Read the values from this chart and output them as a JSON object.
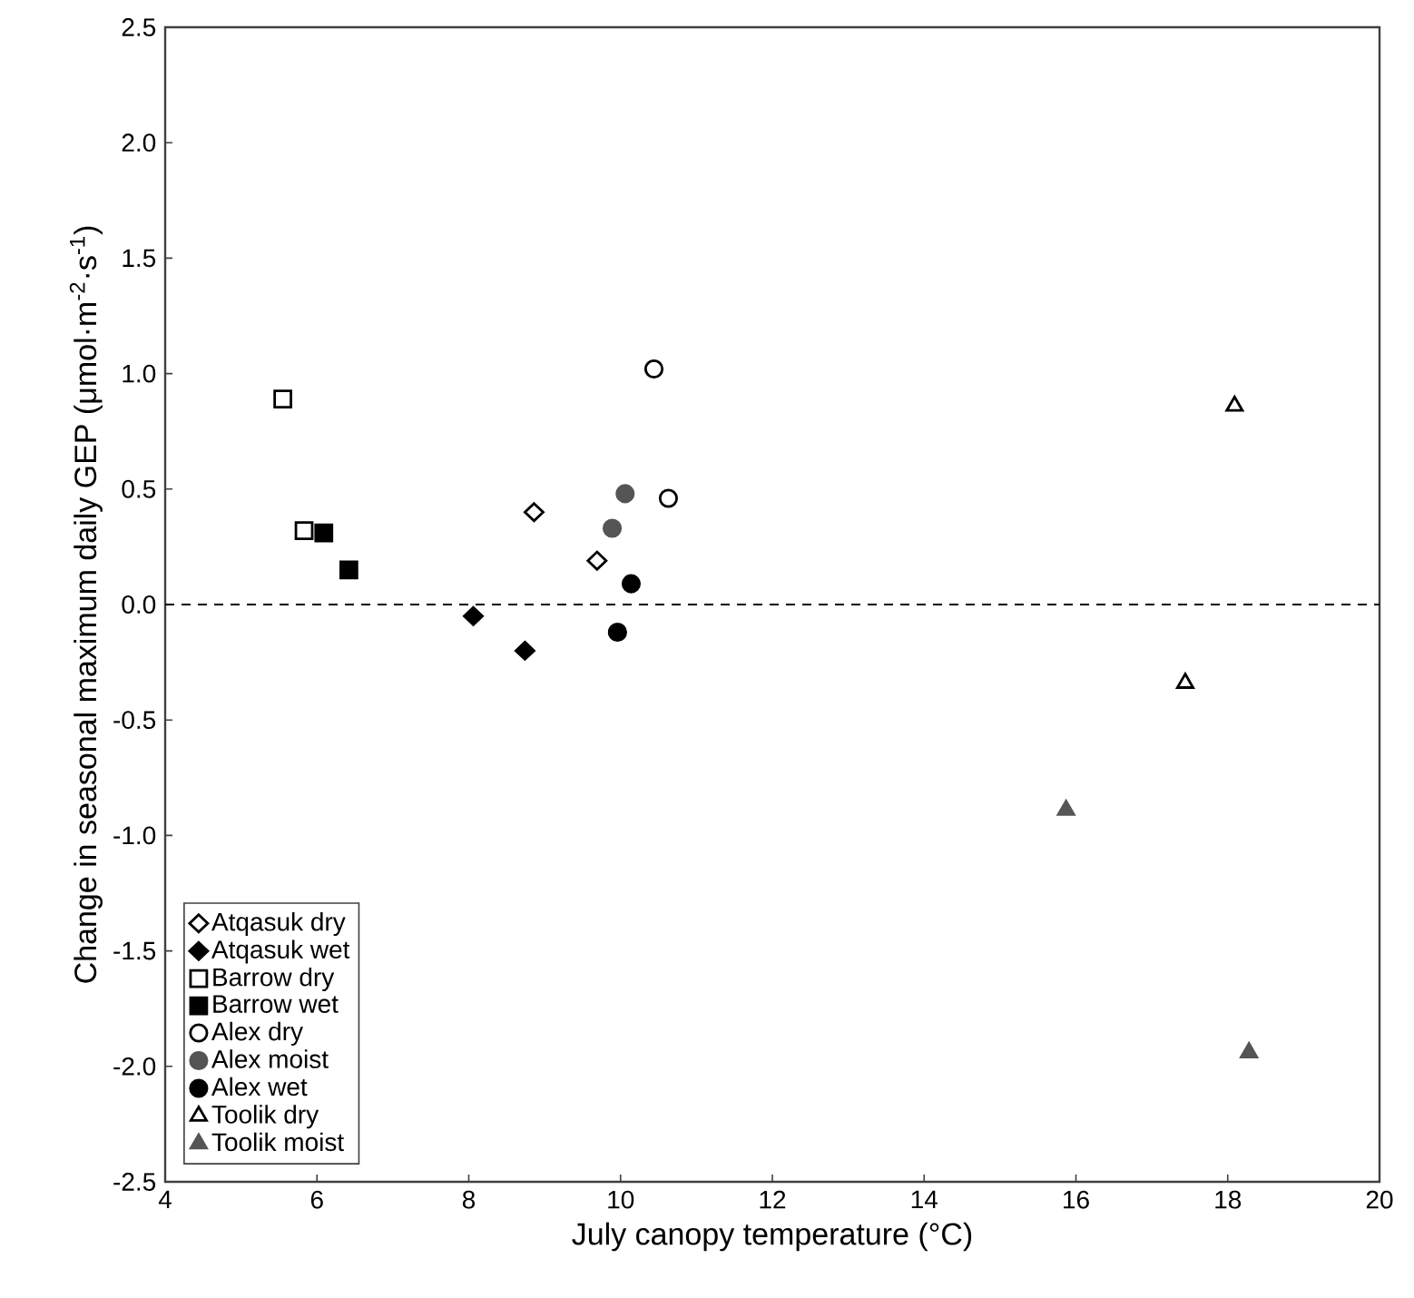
{
  "chart_data": {
    "type": "scatter",
    "xlabel": "July canopy temperature (°C)",
    "ylabel": "Change in seasonal maximum daily GEP (μmol·m$^{-2}$·s$^{-1}$)",
    "xlim": [
      4,
      20
    ],
    "ylim": [
      -2.5,
      2.5
    ],
    "xticks": [
      4,
      6,
      8,
      10,
      12,
      14,
      16,
      18,
      20
    ],
    "yticks": [
      {
        "value": -2.5,
        "label": "-2.5"
      },
      {
        "value": -2.0,
        "label": "-2.0"
      },
      {
        "value": -1.5,
        "label": "-1.5"
      },
      {
        "value": -1.0,
        "label": "-1.0"
      },
      {
        "value": -0.5,
        "label": "-0.5"
      },
      {
        "value": 0,
        "label": "0.0"
      },
      {
        "value": 0.5,
        "label": "0.5"
      },
      {
        "value": 1.0,
        "label": "1.0"
      },
      {
        "value": 1.5,
        "label": "1.5"
      },
      {
        "value": 2.0,
        "label": "2.0"
      },
      {
        "value": 2.5,
        "label": "2.5"
      }
    ],
    "ref_lines": [
      {
        "axis": "y",
        "value": 0,
        "color": "#000000",
        "line_style": "dashed"
      }
    ],
    "legend": "bottom left",
    "grid": false,
    "series": [
      {
        "name": "Atqasuk dry",
        "color": "#000000",
        "marker": "diamond-open",
        "x": [
          8.86,
          9.69
        ],
        "values": [
          0.4,
          0.19
        ]
      },
      {
        "name": "Atqasuk wet",
        "color": "#000000",
        "marker": "diamond",
        "x": [
          8.06,
          8.74
        ],
        "values": [
          -0.05,
          -0.2
        ]
      },
      {
        "name": "Barrow dry",
        "color": "#000000",
        "marker": "square-open",
        "x": [
          5.55,
          5.83
        ],
        "values": [
          0.89,
          0.32
        ]
      },
      {
        "name": "Barrow wet",
        "color": "#000000",
        "marker": "square",
        "x": [
          6.09,
          6.42
        ],
        "values": [
          0.31,
          0.15
        ]
      },
      {
        "name": "Alex dry",
        "color": "#000000",
        "marker": "circle-open",
        "x": [
          10.44,
          10.63
        ],
        "values": [
          1.02,
          0.46
        ]
      },
      {
        "name": "Alex moist",
        "color": "#555555",
        "marker": "circle",
        "x": [
          10.06,
          9.89
        ],
        "values": [
          0.48,
          0.33
        ]
      },
      {
        "name": "Alex wet",
        "color": "#000000",
        "marker": "circle",
        "x": [
          10.14,
          9.96
        ],
        "values": [
          0.09,
          -0.12
        ]
      },
      {
        "name": "Toolik dry",
        "color": "#000000",
        "marker": "triangle-open",
        "x": [
          18.09,
          17.44
        ],
        "values": [
          0.86,
          -0.34
        ]
      },
      {
        "name": "Toolik moist",
        "color": "#555555",
        "marker": "triangle",
        "x": [
          15.87,
          18.28
        ],
        "values": [
          -0.89,
          -1.94
        ]
      }
    ]
  }
}
